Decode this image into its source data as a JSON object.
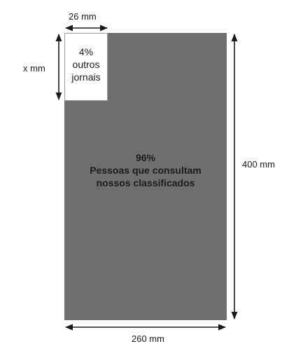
{
  "diagram": {
    "top_width_label": "26 mm",
    "left_height_label": "x mm",
    "right_height_label": "400 mm",
    "bottom_width_label": "260 mm",
    "small_box": {
      "line1": "4%",
      "line2": "outros",
      "line3": "jornais"
    },
    "large_area": {
      "line1": "96%",
      "line2": "Pessoas que consultam",
      "line3": "nossos classificados"
    },
    "colors": {
      "large_fill": "#6e6e6e",
      "small_fill": "#ffffff",
      "arrows": "#1a1a1a"
    }
  }
}
